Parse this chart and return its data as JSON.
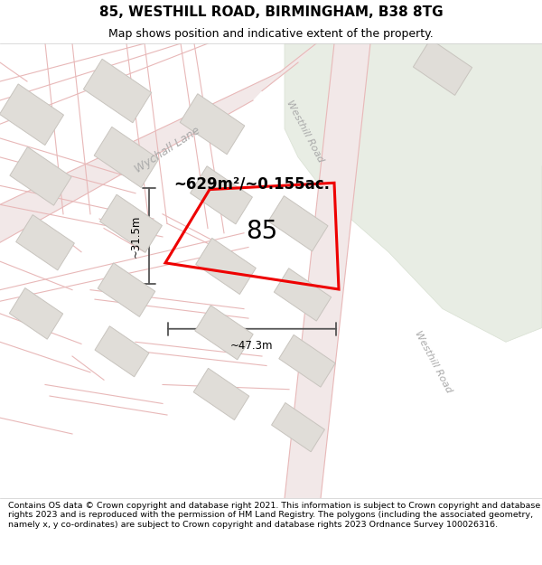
{
  "title": "85, WESTHILL ROAD, BIRMINGHAM, B38 8TG",
  "subtitle": "Map shows position and indicative extent of the property.",
  "footer": "Contains OS data © Crown copyright and database right 2021. This information is subject to Crown copyright and database rights 2023 and is reproduced with the permission of HM Land Registry. The polygons (including the associated geometry, namely x, y co-ordinates) are subject to Crown copyright and database rights 2023 Ordnance Survey 100026316.",
  "area_label": "~629m²/~0.155ac.",
  "plot_number": "85",
  "dim_width": "~47.3m",
  "dim_height": "~31.5m",
  "map_bg": "#f7f5f2",
  "road_line_color": "#e8b8b8",
  "road_fill_color": "#f2e8e8",
  "building_fill": "#e0ddd8",
  "building_outline": "#c8c4be",
  "plot_color": "#ee0000",
  "green_area_color": "#e8ede4",
  "green_outline": "#d8e0d2",
  "road_label_color": "#aaaaaa",
  "dim_color": "#555555",
  "title_fontsize": 11,
  "subtitle_fontsize": 9,
  "footer_fontsize": 6.8,
  "road_lw": 0.8,
  "plot_lw": 2.2
}
